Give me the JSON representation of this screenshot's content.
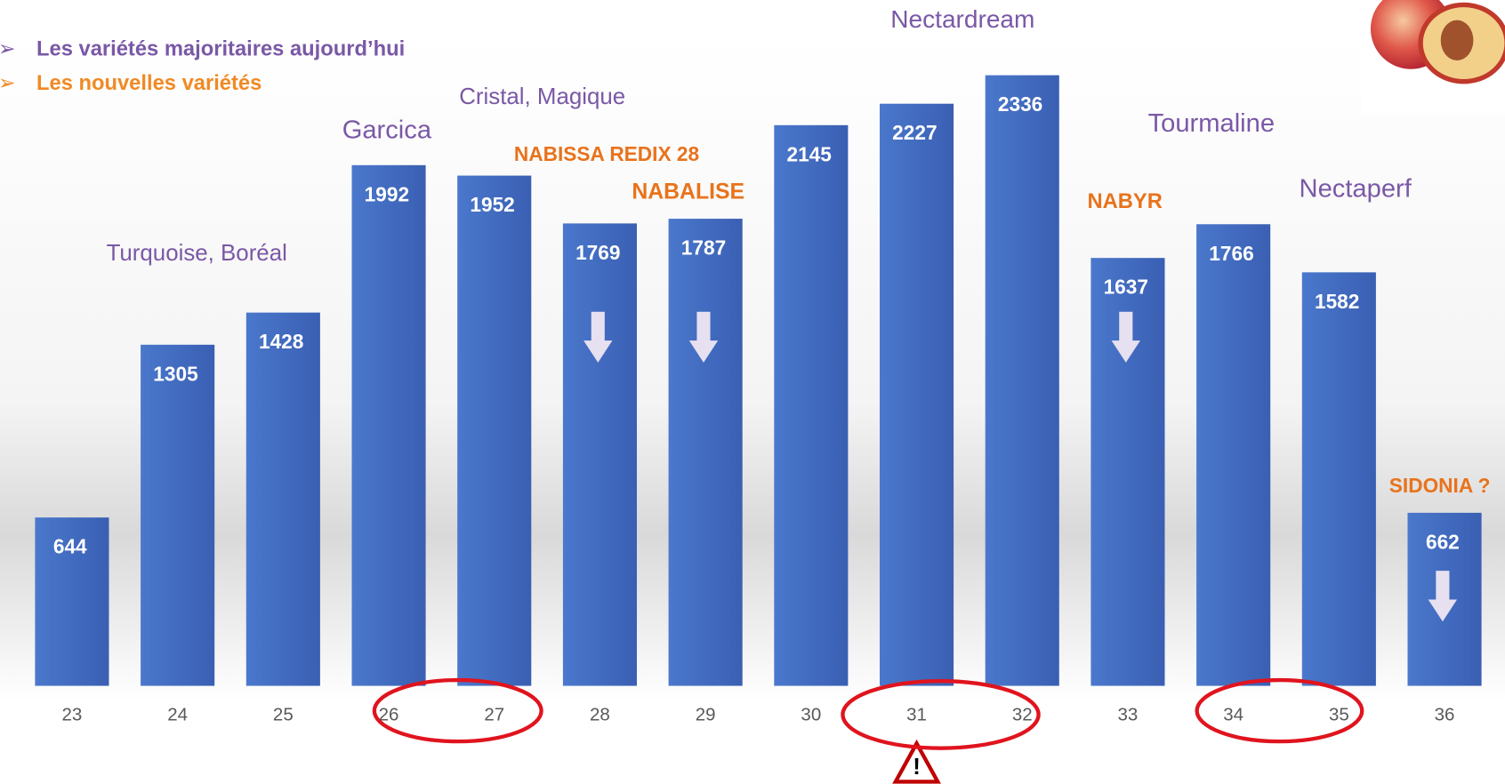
{
  "chart_data": {
    "type": "bar",
    "legend": [
      {
        "text": "Les variétés majoritaires aujourd’hui",
        "color": "#7a58a6"
      },
      {
        "text": "Les nouvelles variétés",
        "color": "#f08a24"
      }
    ],
    "categories": [
      "23",
      "24",
      "25",
      "26",
      "27",
      "28",
      "29",
      "30",
      "31",
      "32",
      "33",
      "34",
      "35",
      "36"
    ],
    "values": [
      644,
      1305,
      1428,
      1992,
      1952,
      1769,
      1787,
      2145,
      2227,
      2336,
      1637,
      1766,
      1582,
      662
    ],
    "color": "#4169c0",
    "ylim": [
      0,
      2400
    ],
    "annotations": [
      {
        "text": "Turquoise, Boréal",
        "color": "#7a58a6"
      },
      {
        "text": "Garcica",
        "color": "#7a58a6"
      },
      {
        "text": "Cristal, Magique",
        "color": "#7a58a6"
      },
      {
        "text": "NABISSA  REDIX 28",
        "color": "#e8731c"
      },
      {
        "text": "NABALISE",
        "color": "#e8731c"
      },
      {
        "text": "Nectardream",
        "color": "#7a58a6"
      },
      {
        "text": "Tourmaline",
        "color": "#7a58a6"
      },
      {
        "text": "NABYR",
        "color": "#e8731c"
      },
      {
        "text": "Nectaperf",
        "color": "#7a58a6"
      },
      {
        "text": "SIDONIA ?",
        "color": "#e8731c"
      }
    ]
  }
}
